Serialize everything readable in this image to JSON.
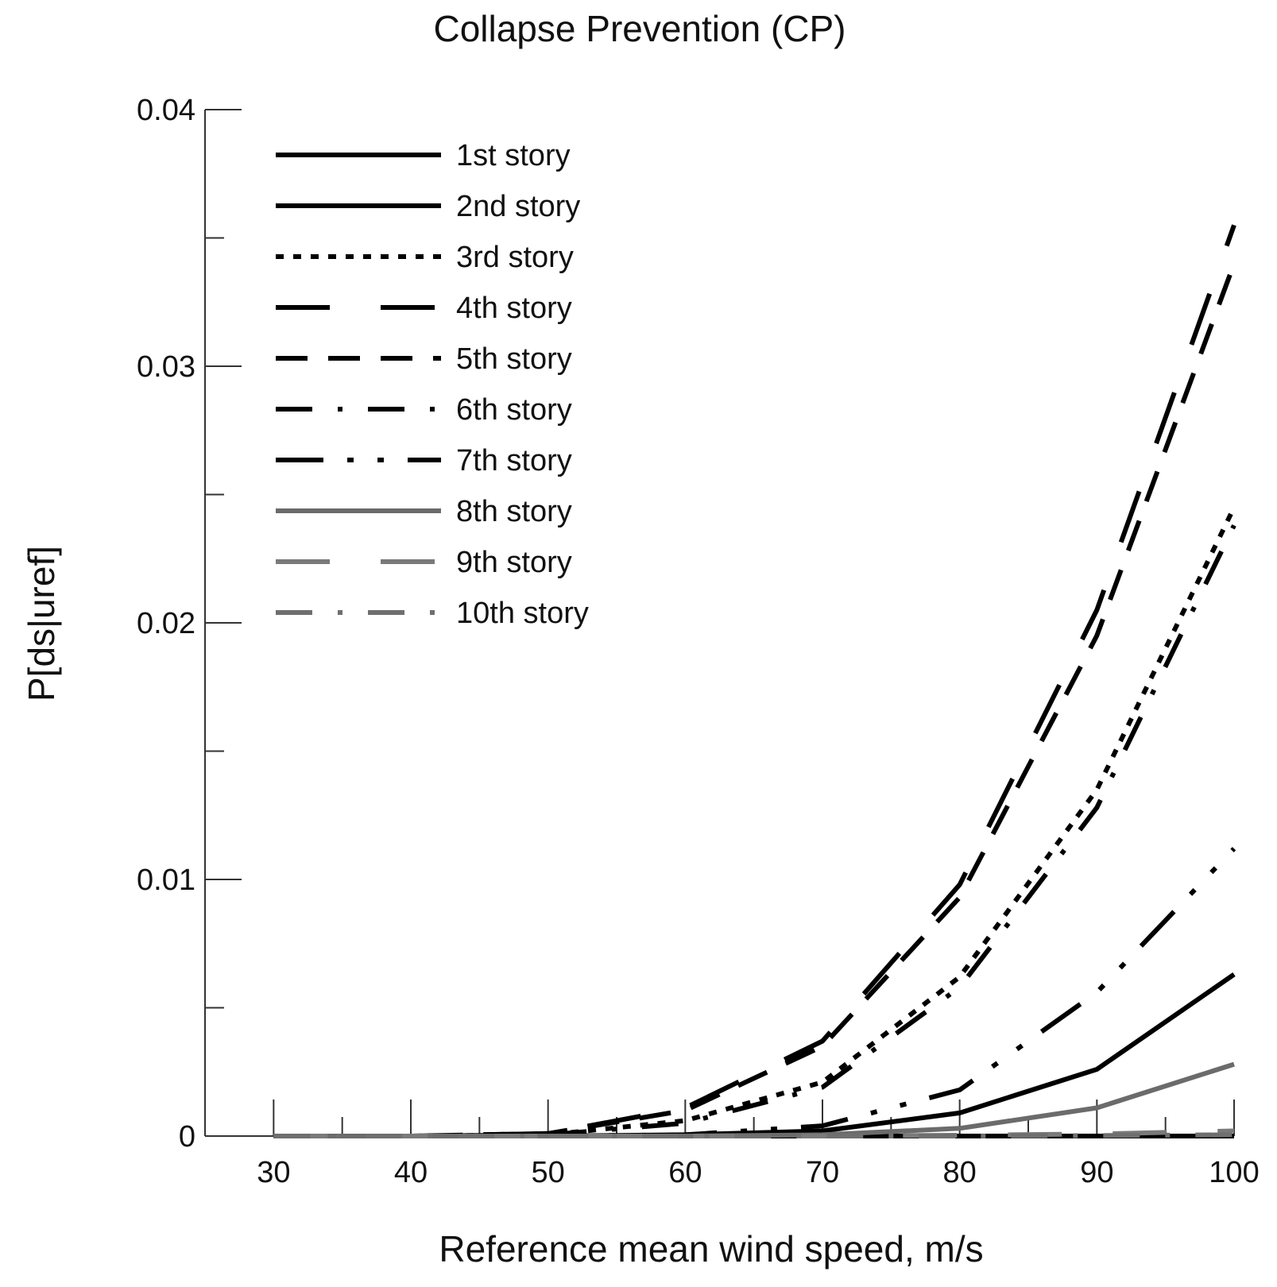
{
  "chart_data": {
    "type": "line",
    "title": "Collapse Prevention (CP)",
    "xlabel": "Reference mean wind speed, m/s",
    "ylabel": "P[ds|uref]",
    "xlim": [
      25,
      100
    ],
    "ylim": [
      0,
      0.04
    ],
    "x_ticks": [
      30,
      40,
      50,
      60,
      70,
      80,
      90,
      100
    ],
    "x_tick_labels": [
      "30",
      "40",
      "50",
      "60",
      "70",
      "80",
      "90",
      "100"
    ],
    "y_ticks": [
      0,
      0.01,
      0.02,
      0.03,
      0.04
    ],
    "y_tick_labels": [
      "0",
      "0.01",
      "0.02",
      "0.03",
      "0.04"
    ],
    "y_minor_ticks": [
      0.005,
      0.015,
      0.025,
      0.035
    ],
    "x_minor_ticks": [
      35,
      45,
      55,
      65,
      75,
      85,
      95
    ],
    "grid": false,
    "legend_position": "top-left",
    "x": [
      30,
      40,
      50,
      60,
      70,
      80,
      90,
      100
    ],
    "series": [
      {
        "name": "1st story",
        "color": "#000000",
        "style": "solid",
        "values": [
          0,
          0,
          0,
          0,
          0,
          0,
          0,
          0
        ]
      },
      {
        "name": "2nd story",
        "color": "#000000",
        "style": "solid",
        "values": [
          0,
          0,
          0,
          5e-05,
          0.0002,
          0.0009,
          0.0026,
          0.0063
        ]
      },
      {
        "name": "3rd story",
        "color": "#000000",
        "style": "dotted",
        "values": [
          0,
          0,
          5e-05,
          0.0006,
          0.0021,
          0.0062,
          0.0135,
          0.0245
        ]
      },
      {
        "name": "4th story",
        "color": "#000000",
        "style": "long-dash",
        "values": [
          0,
          0,
          0.0001,
          0.0011,
          0.0037,
          0.0098,
          0.0205,
          0.0355
        ]
      },
      {
        "name": "5th story",
        "color": "#000000",
        "style": "dash",
        "values": [
          0,
          0,
          0.0001,
          0.001,
          0.0035,
          0.0093,
          0.0195,
          0.034
        ]
      },
      {
        "name": "6th story",
        "color": "#000000",
        "style": "dash-dot",
        "values": [
          0,
          0,
          5e-05,
          0.0005,
          0.0019,
          0.0058,
          0.0128,
          0.0238
        ]
      },
      {
        "name": "7th story",
        "color": "#000000",
        "style": "dash-dot-dot",
        "values": [
          0,
          0,
          0,
          5e-05,
          0.0004,
          0.0018,
          0.0056,
          0.0112
        ]
      },
      {
        "name": "8th story",
        "color": "#6b6b6b",
        "style": "solid",
        "values": [
          0,
          0,
          0,
          0,
          5e-05,
          0.0003,
          0.0011,
          0.0028
        ]
      },
      {
        "name": "9th story",
        "color": "#7a7a7a",
        "style": "long-dash",
        "values": [
          0,
          0,
          0,
          0,
          0,
          3e-05,
          8e-05,
          0.0002
        ]
      },
      {
        "name": "10th story",
        "color": "#6f6f6f",
        "style": "dash-dot",
        "values": [
          0,
          0,
          0,
          0,
          0,
          0,
          2e-05,
          5e-05
        ]
      }
    ]
  }
}
